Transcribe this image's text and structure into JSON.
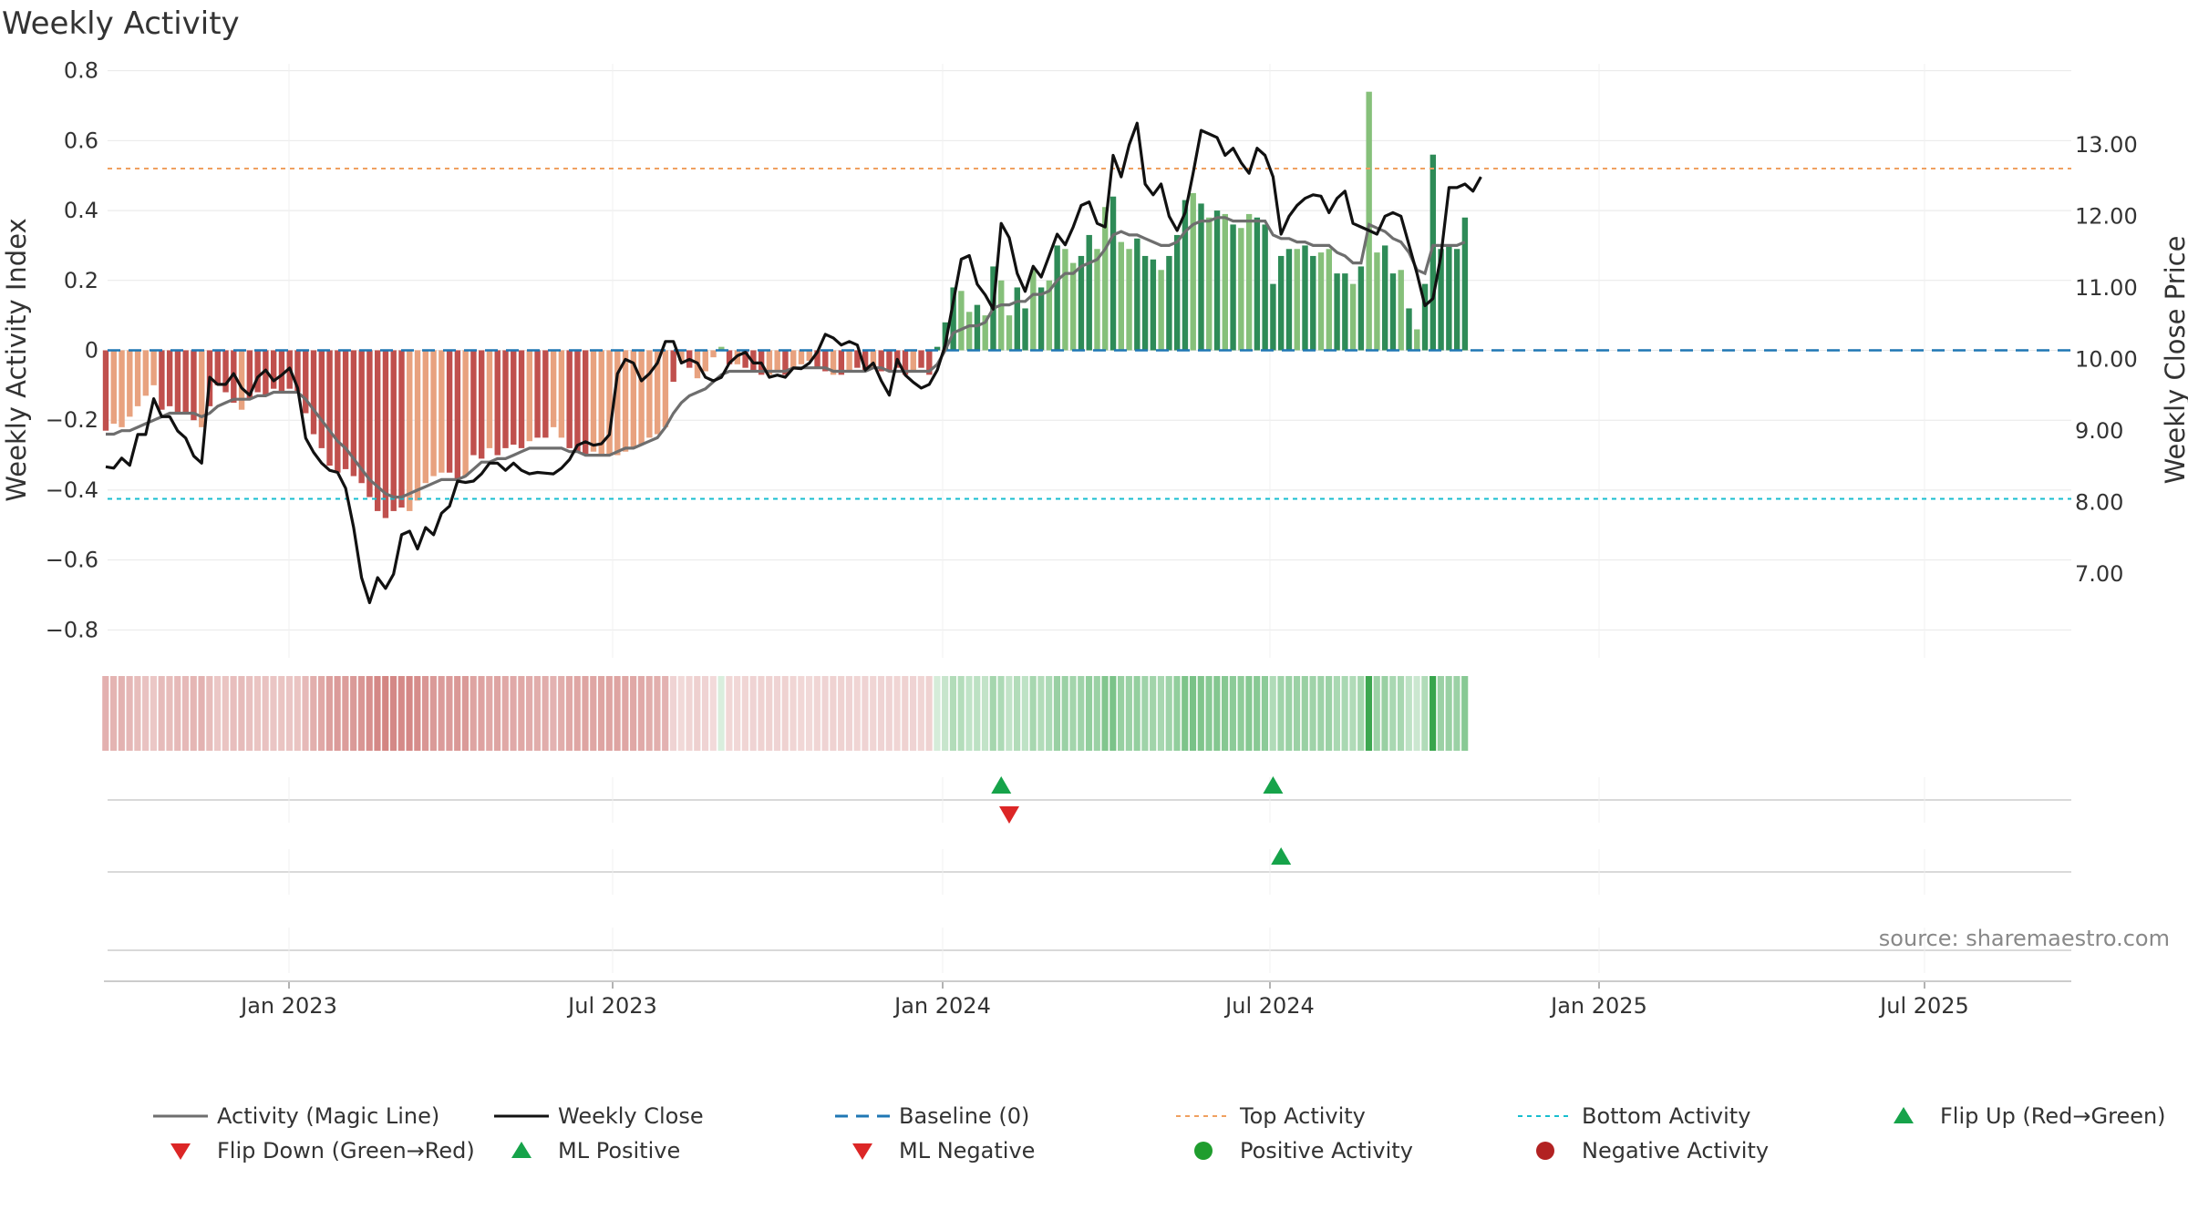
{
  "title": "Weekly Activity",
  "source": "source: sharemaestro.com",
  "colors": {
    "red_dark": "#c0504d",
    "red_light": "#e8a27f",
    "green_dark": "#2e8b57",
    "green_light": "#86c07a",
    "magic_line": "#6e6e6e",
    "close_line": "#111111",
    "baseline": "#1f77b4",
    "top_activity": "#f0a060",
    "bottom_activity": "#17becf",
    "flip_up": "#16a34a",
    "flip_down": "#dc2626",
    "positive_dot": "#1f9d2e",
    "negative_dot": "#b22222"
  },
  "chart_data": {
    "type": "bar",
    "title": "Weekly Activity",
    "x_start": "2022-10-03",
    "x_step_days": 7,
    "x_ticks": [
      "Jan 2023",
      "Jul 2023",
      "Jan 2024",
      "Jul 2024",
      "Jan 2025",
      "Jul 2025"
    ],
    "left_axis": {
      "label": "Weekly Activity Index",
      "ylim": [
        -0.88,
        0.82
      ],
      "ticks": [
        0.8,
        0.6,
        0.4,
        0.2,
        0,
        -0.2,
        -0.4,
        -0.6,
        -0.8
      ],
      "tick_labels": [
        "0.8",
        "0.6",
        "0.4",
        "0.2",
        "0",
        "−0.2",
        "−0.4",
        "−0.6",
        "−0.8"
      ]
    },
    "right_axis": {
      "label": "Weekly Close Price",
      "ylim": [
        5.83,
        14.13
      ],
      "ticks": [
        13,
        12,
        11,
        10,
        9,
        8,
        7
      ],
      "tick_labels": [
        "13.00",
        "12.00",
        "11.00",
        "10.00",
        "9.00",
        "8.00",
        "7.00"
      ]
    },
    "reference_lines": {
      "baseline": 0,
      "top_activity": 0.52,
      "bottom_activity": -0.425
    },
    "activity_index": [
      -0.23,
      -0.21,
      -0.22,
      -0.19,
      -0.16,
      -0.13,
      -0.1,
      -0.17,
      -0.16,
      -0.18,
      -0.18,
      -0.2,
      -0.22,
      -0.16,
      -0.1,
      -0.12,
      -0.15,
      -0.17,
      -0.14,
      -0.12,
      -0.13,
      -0.11,
      -0.12,
      -0.11,
      -0.12,
      -0.18,
      -0.24,
      -0.28,
      -0.33,
      -0.35,
      -0.34,
      -0.36,
      -0.38,
      -0.42,
      -0.46,
      -0.48,
      -0.46,
      -0.45,
      -0.46,
      -0.43,
      -0.38,
      -0.36,
      -0.35,
      -0.35,
      -0.37,
      -0.36,
      -0.3,
      -0.31,
      -0.28,
      -0.3,
      -0.28,
      -0.27,
      -0.28,
      -0.26,
      -0.25,
      -0.25,
      -0.22,
      -0.25,
      -0.28,
      -0.29,
      -0.3,
      -0.29,
      -0.3,
      -0.3,
      -0.3,
      -0.29,
      -0.28,
      -0.27,
      -0.25,
      -0.24,
      -0.22,
      -0.09,
      -0.03,
      -0.05,
      -0.08,
      -0.06,
      -0.02,
      0.01,
      -0.04,
      -0.04,
      -0.05,
      -0.06,
      -0.07,
      -0.07,
      -0.06,
      -0.07,
      -0.05,
      -0.04,
      -0.03,
      -0.05,
      -0.06,
      -0.07,
      -0.07,
      -0.06,
      -0.05,
      -0.06,
      -0.05,
      -0.06,
      -0.06,
      -0.05,
      -0.07,
      -0.06,
      -0.05,
      -0.07,
      0.01,
      0.08,
      0.18,
      0.17,
      0.11,
      0.13,
      0.1,
      0.24,
      0.2,
      0.1,
      0.18,
      0.12,
      0.23,
      0.18,
      0.2,
      0.3,
      0.29,
      0.25,
      0.27,
      0.33,
      0.29,
      0.41,
      0.44,
      0.31,
      0.29,
      0.32,
      0.27,
      0.26,
      0.23,
      0.27,
      0.33,
      0.43,
      0.45,
      0.42,
      0.38,
      0.4,
      0.39,
      0.36,
      0.35,
      0.39,
      0.38,
      0.36,
      0.19,
      0.27,
      0.29,
      0.29,
      0.3,
      0.27,
      0.28,
      0.29,
      0.22,
      0.22,
      0.19,
      0.24,
      0.74,
      0.28,
      0.3,
      0.22,
      0.23,
      0.12,
      0.06,
      0.19,
      0.56,
      0.29,
      0.3,
      0.29,
      0.38
    ],
    "magic_line": [
      -0.24,
      -0.24,
      -0.23,
      -0.23,
      -0.22,
      -0.21,
      -0.2,
      -0.19,
      -0.18,
      -0.18,
      -0.18,
      -0.18,
      -0.19,
      -0.18,
      -0.16,
      -0.15,
      -0.14,
      -0.14,
      -0.14,
      -0.13,
      -0.13,
      -0.12,
      -0.12,
      -0.12,
      -0.12,
      -0.14,
      -0.17,
      -0.2,
      -0.23,
      -0.26,
      -0.28,
      -0.31,
      -0.34,
      -0.37,
      -0.39,
      -0.41,
      -0.42,
      -0.42,
      -0.41,
      -0.4,
      -0.39,
      -0.38,
      -0.37,
      -0.37,
      -0.37,
      -0.36,
      -0.34,
      -0.32,
      -0.32,
      -0.31,
      -0.31,
      -0.3,
      -0.29,
      -0.28,
      -0.28,
      -0.28,
      -0.28,
      -0.28,
      -0.29,
      -0.29,
      -0.3,
      -0.3,
      -0.3,
      -0.3,
      -0.29,
      -0.28,
      -0.28,
      -0.27,
      -0.26,
      -0.25,
      -0.22,
      -0.18,
      -0.15,
      -0.13,
      -0.12,
      -0.11,
      -0.09,
      -0.07,
      -0.06,
      -0.06,
      -0.06,
      -0.06,
      -0.06,
      -0.06,
      -0.06,
      -0.06,
      -0.05,
      -0.05,
      -0.05,
      -0.05,
      -0.05,
      -0.06,
      -0.06,
      -0.06,
      -0.06,
      -0.06,
      -0.05,
      -0.05,
      -0.06,
      -0.06,
      -0.06,
      -0.06,
      -0.06,
      -0.06,
      -0.04,
      0.0,
      0.05,
      0.06,
      0.07,
      0.07,
      0.08,
      0.12,
      0.13,
      0.13,
      0.14,
      0.14,
      0.16,
      0.16,
      0.17,
      0.2,
      0.22,
      0.22,
      0.24,
      0.25,
      0.26,
      0.29,
      0.33,
      0.34,
      0.33,
      0.33,
      0.32,
      0.31,
      0.3,
      0.3,
      0.31,
      0.34,
      0.36,
      0.37,
      0.37,
      0.38,
      0.38,
      0.37,
      0.37,
      0.37,
      0.37,
      0.37,
      0.33,
      0.32,
      0.32,
      0.31,
      0.31,
      0.3,
      0.3,
      0.3,
      0.28,
      0.27,
      0.25,
      0.25,
      0.36,
      0.35,
      0.34,
      0.32,
      0.31,
      0.28,
      0.23,
      0.22,
      0.3,
      0.3,
      0.3,
      0.3,
      0.31
    ],
    "weekly_close": [
      8.5,
      8.48,
      8.62,
      8.52,
      8.95,
      8.95,
      9.45,
      9.2,
      9.2,
      9.0,
      8.9,
      8.65,
      8.55,
      9.75,
      9.65,
      9.65,
      9.8,
      9.6,
      9.5,
      9.75,
      9.85,
      9.7,
      9.78,
      9.88,
      9.6,
      8.9,
      8.7,
      8.55,
      8.45,
      8.42,
      8.2,
      7.65,
      6.95,
      6.6,
      6.95,
      6.8,
      7.0,
      7.55,
      7.6,
      7.35,
      7.65,
      7.55,
      7.85,
      7.95,
      8.3,
      8.28,
      8.3,
      8.4,
      8.55,
      8.55,
      8.45,
      8.55,
      8.45,
      8.4,
      8.42,
      8.41,
      8.4,
      8.48,
      8.6,
      8.8,
      8.85,
      8.8,
      8.82,
      8.95,
      9.8,
      10.0,
      9.95,
      9.7,
      9.8,
      9.95,
      10.25,
      10.25,
      9.95,
      10.0,
      9.95,
      9.75,
      9.7,
      9.75,
      9.95,
      10.05,
      10.1,
      9.95,
      9.95,
      9.75,
      9.78,
      9.75,
      9.88,
      9.87,
      9.95,
      10.1,
      10.35,
      10.3,
      10.2,
      10.25,
      10.2,
      9.85,
      9.95,
      9.7,
      9.5,
      10.0,
      9.78,
      9.68,
      9.6,
      9.65,
      9.85,
      10.2,
      10.8,
      11.4,
      11.45,
      11.05,
      10.9,
      10.7,
      11.9,
      11.7,
      11.2,
      10.95,
      11.3,
      11.15,
      11.45,
      11.75,
      11.6,
      11.85,
      12.15,
      12.2,
      11.9,
      11.85,
      12.85,
      12.55,
      13.0,
      13.3,
      12.45,
      12.3,
      12.45,
      12.0,
      11.8,
      12.05,
      12.6,
      13.2,
      13.15,
      13.1,
      12.85,
      12.95,
      12.75,
      12.6,
      12.95,
      12.85,
      12.55,
      11.75,
      12.0,
      12.15,
      12.25,
      12.3,
      12.28,
      12.05,
      12.25,
      12.35,
      11.9,
      11.85,
      11.8,
      11.75,
      12.0,
      12.05,
      12.0,
      11.6,
      11.2,
      10.75,
      10.85,
      11.45,
      12.4,
      12.4,
      12.45,
      12.35,
      12.55
    ],
    "bar_shades": [
      "dark",
      "light",
      "light",
      "light",
      "light",
      "light",
      "light",
      "dark",
      "dark",
      "dark",
      "dark",
      "dark",
      "light",
      "dark",
      "dark",
      "dark",
      "dark",
      "light",
      "dark",
      "dark",
      "dark",
      "dark",
      "dark",
      "dark",
      "dark",
      "dark",
      "dark",
      "dark",
      "dark",
      "dark",
      "dark",
      "dark",
      "dark",
      "dark",
      "dark",
      "dark",
      "dark",
      "dark",
      "light",
      "light",
      "light",
      "light",
      "light",
      "dark",
      "dark",
      "light",
      "dark",
      "dark",
      "light",
      "dark",
      "dark",
      "dark",
      "dark",
      "light",
      "dark",
      "dark",
      "light",
      "light",
      "dark",
      "dark",
      "dark",
      "light",
      "light",
      "light",
      "light",
      "light",
      "light",
      "light",
      "light",
      "light",
      "light",
      "dark",
      "light",
      "dark",
      "light",
      "light",
      "light",
      "light",
      "dark",
      "light",
      "dark",
      "dark",
      "dark",
      "light",
      "light",
      "dark",
      "light",
      "light",
      "light",
      "dark",
      "dark",
      "light",
      "dark",
      "light",
      "dark",
      "dark",
      "light",
      "dark",
      "dark",
      "dark",
      "dark",
      "light",
      "dark",
      "dark",
      "dark",
      "dark",
      "dark",
      "light",
      "light",
      "dark",
      "light",
      "dark",
      "light",
      "light",
      "dark",
      "dark",
      "light",
      "dark",
      "light",
      "dark",
      "light",
      "light",
      "dark",
      "dark",
      "light",
      "light",
      "dark",
      "light",
      "light",
      "dark",
      "dark",
      "dark",
      "light",
      "dark",
      "dark",
      "dark",
      "light",
      "dark",
      "light",
      "dark",
      "light",
      "dark",
      "light",
      "light",
      "dark",
      "dark",
      "dark",
      "dark",
      "dark",
      "light",
      "dark",
      "dark",
      "light",
      "light",
      "dark",
      "dark",
      "light",
      "dark",
      "light",
      "light",
      "dark",
      "dark",
      "light",
      "dark",
      "light",
      "dark",
      "dark"
    ],
    "heatmap_strip": [
      0.45,
      0.43,
      0.44,
      0.41,
      0.38,
      0.35,
      0.32,
      0.39,
      0.38,
      0.4,
      0.4,
      0.42,
      0.44,
      0.38,
      0.32,
      0.34,
      0.37,
      0.39,
      0.36,
      0.34,
      0.35,
      0.33,
      0.34,
      0.33,
      0.34,
      0.4,
      0.46,
      0.5,
      0.55,
      0.57,
      0.56,
      0.58,
      0.6,
      0.64,
      0.68,
      0.7,
      0.68,
      0.67,
      0.68,
      0.65,
      0.6,
      0.58,
      0.57,
      0.57,
      0.59,
      0.58,
      0.52,
      0.53,
      0.5,
      0.52,
      0.5,
      0.49,
      0.5,
      0.48,
      0.47,
      0.47,
      0.44,
      0.47,
      0.5,
      0.51,
      0.52,
      0.51,
      0.52,
      0.52,
      0.52,
      0.51,
      0.5,
      0.49,
      0.47,
      0.46,
      0.44,
      0.25,
      0.22,
      0.24,
      0.27,
      0.25,
      0.21,
      0.18,
      0.23,
      0.23,
      0.24,
      0.25,
      0.26,
      0.26,
      0.25,
      0.26,
      0.24,
      0.23,
      0.22,
      0.24,
      0.25,
      0.26,
      0.26,
      0.25,
      0.24,
      0.25,
      0.24,
      0.25,
      0.25,
      0.24,
      0.26,
      0.25,
      0.24,
      0.26,
      0.2,
      0.27,
      0.37,
      0.36,
      0.3,
      0.32,
      0.29,
      0.43,
      0.39,
      0.29,
      0.37,
      0.31,
      0.42,
      0.37,
      0.39,
      0.49,
      0.48,
      0.44,
      0.46,
      0.52,
      0.48,
      0.6,
      0.63,
      0.5,
      0.48,
      0.51,
      0.46,
      0.45,
      0.42,
      0.46,
      0.52,
      0.62,
      0.64,
      0.61,
      0.57,
      0.59,
      0.58,
      0.55,
      0.54,
      0.58,
      0.57,
      0.55,
      0.38,
      0.46,
      0.48,
      0.48,
      0.49,
      0.46,
      0.47,
      0.48,
      0.41,
      0.41,
      0.38,
      0.43,
      0.93,
      0.47,
      0.49,
      0.41,
      0.42,
      0.31,
      0.25,
      0.38,
      0.95,
      0.48,
      0.49,
      0.48,
      0.57
    ],
    "signals": {
      "row1_flip_up": [
        112,
        146
      ],
      "row1_flip_down": [
        113
      ],
      "row2_ml_positive": [
        147
      ]
    },
    "legend": [
      {
        "key": "magic",
        "label": "Activity (Magic Line)"
      },
      {
        "key": "close",
        "label": "Weekly Close"
      },
      {
        "key": "baseline",
        "label": "Baseline (0)"
      },
      {
        "key": "top",
        "label": "Top Activity"
      },
      {
        "key": "bottom",
        "label": "Bottom Activity"
      },
      {
        "key": "flipup",
        "label": "Flip Up (Red→Green)"
      },
      {
        "key": "flipdown",
        "label": "Flip Down (Green→Red)"
      },
      {
        "key": "mlpos",
        "label": "ML Positive"
      },
      {
        "key": "mlneg",
        "label": "ML Negative"
      },
      {
        "key": "posact",
        "label": "Positive Activity"
      },
      {
        "key": "negact",
        "label": "Negative Activity"
      }
    ]
  }
}
